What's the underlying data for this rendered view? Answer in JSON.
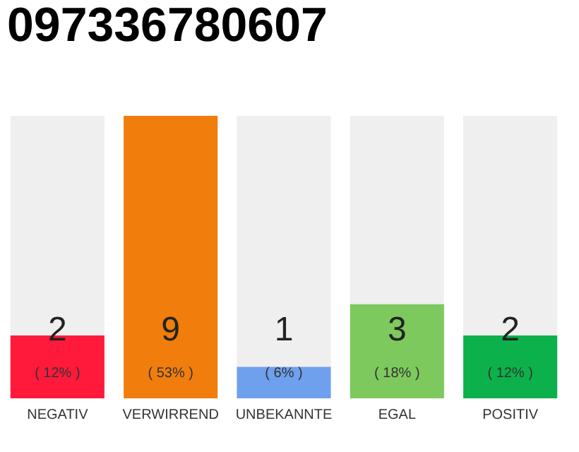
{
  "chart_data": {
    "type": "bar",
    "title": "097336780607",
    "categories": [
      "NEGATIV",
      "VERWIRREND",
      "UNBEKANNTE",
      "EGAL",
      "POSITIV"
    ],
    "values": [
      2,
      9,
      1,
      3,
      2
    ],
    "colors": [
      "#ff1a3c",
      "#f07d0c",
      "#6ea0ee",
      "#7dc95e",
      "#0db14b"
    ],
    "data_labels": true,
    "annotations": [
      "( 12% )",
      "( 53% )",
      "( 6% )",
      "( 18% )",
      "( 12% )"
    ]
  }
}
